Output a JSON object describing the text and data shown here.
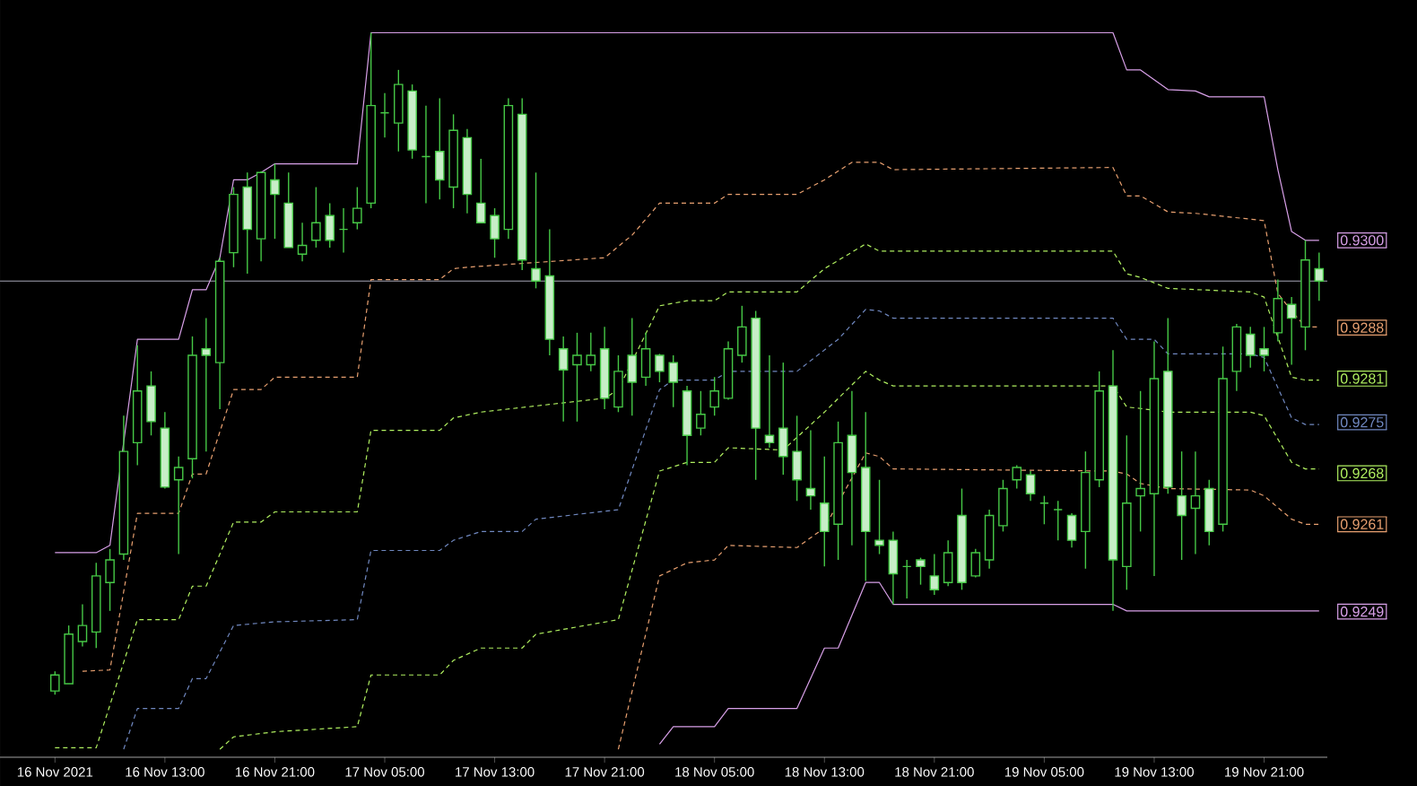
{
  "chart_data": {
    "type": "candlestick",
    "color": "#46c846",
    "x": [
      "2021-11-16T05:00",
      "2021-11-16T06:00",
      "2021-11-16T07:00",
      "2021-11-16T08:00",
      "2021-11-16T09:00",
      "2021-11-16T10:00",
      "2021-11-16T11:00",
      "2021-11-16T12:00",
      "2021-11-16T13:00",
      "2021-11-16T14:00",
      "2021-11-16T15:00",
      "2021-11-16T16:00",
      "2021-11-16T17:00",
      "2021-11-16T18:00",
      "2021-11-16T19:00",
      "2021-11-16T20:00",
      "2021-11-16T21:00",
      "2021-11-16T22:00",
      "2021-11-16T23:00",
      "2021-11-17T00:00",
      "2021-11-17T01:00",
      "2021-11-17T02:00",
      "2021-11-17T03:00",
      "2021-11-17T04:00",
      "2021-11-17T05:00",
      "2021-11-17T06:00",
      "2021-11-17T07:00",
      "2021-11-17T08:00",
      "2021-11-17T09:00",
      "2021-11-17T10:00",
      "2021-11-17T11:00",
      "2021-11-17T12:00",
      "2021-11-17T13:00",
      "2021-11-17T14:00",
      "2021-11-17T15:00",
      "2021-11-17T16:00",
      "2021-11-17T17:00",
      "2021-11-17T18:00",
      "2021-11-17T19:00",
      "2021-11-17T20:00",
      "2021-11-17T21:00",
      "2021-11-17T22:00",
      "2021-11-17T23:00",
      "2021-11-18T00:00",
      "2021-11-18T01:00",
      "2021-11-18T02:00",
      "2021-11-18T03:00",
      "2021-11-18T04:00",
      "2021-11-18T05:00",
      "2021-11-18T06:00",
      "2021-11-18T07:00",
      "2021-11-18T08:00",
      "2021-11-18T09:00",
      "2021-11-18T10:00",
      "2021-11-18T11:00",
      "2021-11-18T12:00",
      "2021-11-18T13:00",
      "2021-11-18T14:00",
      "2021-11-18T15:00",
      "2021-11-18T16:00",
      "2021-11-18T17:00",
      "2021-11-18T18:00",
      "2021-11-18T19:00",
      "2021-11-18T20:00",
      "2021-11-18T21:00",
      "2021-11-18T22:00",
      "2021-11-18T23:00",
      "2021-11-19T00:00",
      "2021-11-19T01:00",
      "2021-11-19T02:00",
      "2021-11-19T03:00",
      "2021-11-19T04:00",
      "2021-11-19T05:00",
      "2021-11-19T06:00",
      "2021-11-19T07:00",
      "2021-11-19T08:00",
      "2021-11-19T09:00",
      "2021-11-19T10:00",
      "2021-11-19T11:00",
      "2021-11-19T12:00",
      "2021-11-19T13:00",
      "2021-11-19T14:00",
      "2021-11-19T15:00",
      "2021-11-19T16:00",
      "2021-11-19T17:00",
      "2021-11-19T18:00",
      "2021-11-19T19:00",
      "2021-11-19T20:00",
      "2021-11-19T21:00",
      "2021-11-19T22:00",
      "2021-11-19T23:00",
      "2021-11-20T00:00",
      "2021-11-20T01:00"
    ],
    "ohlc": [
      [
        0.92381,
        0.92408,
        0.92376,
        0.92403
      ],
      [
        0.92391,
        0.92471,
        0.92391,
        0.92459
      ],
      [
        0.92449,
        0.925,
        0.92442,
        0.92471
      ],
      [
        0.92462,
        0.92557,
        0.9244,
        0.92539
      ],
      [
        0.9253,
        0.92576,
        0.92491,
        0.92561
      ],
      [
        0.92569,
        0.92759,
        0.92561,
        0.9271
      ],
      [
        0.92722,
        0.92856,
        0.92691,
        0.92793
      ],
      [
        0.928,
        0.9282,
        0.92732,
        0.92751
      ],
      [
        0.92742,
        0.92764,
        0.92659,
        0.92661
      ],
      [
        0.92671,
        0.92703,
        0.92569,
        0.92688
      ],
      [
        0.927,
        0.92868,
        0.92673,
        0.92842
      ],
      [
        0.92851,
        0.92893,
        0.9271,
        0.92842
      ],
      [
        0.92832,
        0.92976,
        0.92768,
        0.92971
      ],
      [
        0.92983,
        0.93073,
        0.92963,
        0.93063
      ],
      [
        0.93073,
        0.93093,
        0.92954,
        0.93015
      ],
      [
        0.93002,
        0.93095,
        0.92971,
        0.93093
      ],
      [
        0.93083,
        0.93105,
        0.93002,
        0.93063
      ],
      [
        0.93051,
        0.93093,
        0.9299,
        0.9299
      ],
      [
        0.92981,
        0.93024,
        0.92971,
        0.92993
      ],
      [
        0.93,
        0.93073,
        0.9299,
        0.93024
      ],
      [
        0.93034,
        0.93051,
        0.9299,
        0.93
      ],
      [
        0.93015,
        0.93044,
        0.92983,
        0.93015
      ],
      [
        0.93024,
        0.93073,
        0.93015,
        0.93044
      ],
      [
        0.93051,
        0.93285,
        0.93044,
        0.93185
      ],
      [
        0.93175,
        0.93202,
        0.93141,
        0.93175
      ],
      [
        0.93161,
        0.93234,
        0.93122,
        0.93214
      ],
      [
        0.93205,
        0.93214,
        0.93112,
        0.93124
      ],
      [
        0.93115,
        0.93185,
        0.93051,
        0.93115
      ],
      [
        0.93122,
        0.93195,
        0.93056,
        0.93083
      ],
      [
        0.93073,
        0.93173,
        0.93044,
        0.93151
      ],
      [
        0.93141,
        0.93153,
        0.93037,
        0.93063
      ],
      [
        0.93051,
        0.93112,
        0.93024,
        0.93024
      ],
      [
        0.93034,
        0.93044,
        0.92976,
        0.93002
      ],
      [
        0.93015,
        0.93195,
        0.93002,
        0.93185
      ],
      [
        0.93173,
        0.93195,
        0.92959,
        0.92973
      ],
      [
        0.92961,
        0.93093,
        0.92934,
        0.92944
      ],
      [
        0.92951,
        0.93015,
        0.92842,
        0.92864
      ],
      [
        0.92851,
        0.92868,
        0.92751,
        0.92822
      ],
      [
        0.92829,
        0.92873,
        0.92751,
        0.92842
      ],
      [
        0.92829,
        0.92873,
        0.9282,
        0.92842
      ],
      [
        0.92851,
        0.92881,
        0.92768,
        0.92783
      ],
      [
        0.92771,
        0.92842,
        0.92764,
        0.9282
      ],
      [
        0.92842,
        0.92893,
        0.92759,
        0.92805
      ],
      [
        0.92812,
        0.92873,
        0.928,
        0.92851
      ],
      [
        0.92842,
        0.92844,
        0.92805,
        0.9282
      ],
      [
        0.92832,
        0.92842,
        0.92771,
        0.92805
      ],
      [
        0.92793,
        0.928,
        0.92691,
        0.92732
      ],
      [
        0.92742,
        0.92793,
        0.92732,
        0.92761
      ],
      [
        0.92771,
        0.92812,
        0.92759,
        0.92793
      ],
      [
        0.92783,
        0.92861,
        0.92781,
        0.92851
      ],
      [
        0.92842,
        0.9291,
        0.92832,
        0.92881
      ],
      [
        0.92893,
        0.92903,
        0.92671,
        0.92742
      ],
      [
        0.92732,
        0.92842,
        0.92715,
        0.92722
      ],
      [
        0.92742,
        0.92832,
        0.92678,
        0.92703
      ],
      [
        0.9271,
        0.92759,
        0.92642,
        0.92671
      ],
      [
        0.92659,
        0.92739,
        0.9263,
        0.92649
      ],
      [
        0.92639,
        0.92703,
        0.92552,
        0.926
      ],
      [
        0.9261,
        0.92751,
        0.92561,
        0.92722
      ],
      [
        0.92732,
        0.92793,
        0.92581,
        0.92681
      ],
      [
        0.92688,
        0.92764,
        0.92532,
        0.926
      ],
      [
        0.92588,
        0.92671,
        0.92569,
        0.92581
      ],
      [
        0.92588,
        0.926,
        0.925,
        0.92542
      ],
      [
        0.92552,
        0.92561,
        0.92508,
        0.92552
      ],
      [
        0.92561,
        0.92564,
        0.92527,
        0.92552
      ],
      [
        0.92539,
        0.92569,
        0.92513,
        0.9252
      ],
      [
        0.9253,
        0.92588,
        0.92525,
        0.92571
      ],
      [
        0.92622,
        0.92659,
        0.9252,
        0.9253
      ],
      [
        0.92539,
        0.92576,
        0.92537,
        0.92571
      ],
      [
        0.92561,
        0.9263,
        0.92549,
        0.92622
      ],
      [
        0.92608,
        0.92671,
        0.926,
        0.92659
      ],
      [
        0.92671,
        0.92691,
        0.92659,
        0.92688
      ],
      [
        0.92678,
        0.92683,
        0.92642,
        0.92652
      ],
      [
        0.92639,
        0.92649,
        0.9261,
        0.92639
      ],
      [
        0.9263,
        0.92642,
        0.92588,
        0.9263
      ],
      [
        0.92622,
        0.92625,
        0.92578,
        0.92588
      ],
      [
        0.926,
        0.9271,
        0.92549,
        0.92681
      ],
      [
        0.92671,
        0.9282,
        0.92661,
        0.92793
      ],
      [
        0.928,
        0.92849,
        0.92491,
        0.92561
      ],
      [
        0.92552,
        0.92732,
        0.9252,
        0.92639
      ],
      [
        0.92649,
        0.92793,
        0.926,
        0.92659
      ],
      [
        0.92652,
        0.92861,
        0.92539,
        0.9281
      ],
      [
        0.9282,
        0.92893,
        0.92652,
        0.92661
      ],
      [
        0.92649,
        0.9271,
        0.92561,
        0.92622
      ],
      [
        0.92632,
        0.9271,
        0.92569,
        0.92649
      ],
      [
        0.92659,
        0.92671,
        0.92581,
        0.926
      ],
      [
        0.9261,
        0.92854,
        0.926,
        0.9281
      ],
      [
        0.9282,
        0.92885,
        0.92793,
        0.92881
      ],
      [
        0.92871,
        0.92881,
        0.92825,
        0.92842
      ],
      [
        0.92851,
        0.92881,
        0.9282,
        0.92842
      ],
      [
        0.92873,
        0.92946,
        0.92861,
        0.9292
      ],
      [
        0.92912,
        0.92922,
        0.92829,
        0.92893
      ],
      [
        0.92881,
        0.93,
        0.92849,
        0.92973
      ],
      [
        0.92961,
        0.92983,
        0.92917,
        0.92944
      ]
    ],
    "series": [
      {
        "type": "line",
        "color": "#d8a0e8",
        "line_style": "solid",
        "x": [
          "2021-11-16T05:00",
          "2021-11-16T08:00",
          "2021-11-16T09:00",
          "2021-11-16T11:00",
          "2021-11-16T14:00",
          "2021-11-16T15:00",
          "2021-11-16T16:00",
          "2021-11-16T17:00",
          "2021-11-16T18:00",
          "2021-11-16T19:00",
          "2021-11-16T20:00",
          "2021-11-16T21:00",
          "2021-11-17T03:00",
          "2021-11-17T04:00",
          "2021-11-19T10:00",
          "2021-11-19T11:00",
          "2021-11-19T12:00",
          "2021-11-19T14:00",
          "2021-11-19T16:00",
          "2021-11-19T17:00",
          "2021-11-19T21:00",
          "2021-11-19T22:00",
          "2021-11-19T23:00",
          "2021-11-20T00:00",
          "2021-11-20T01:00"
        ],
        "values": [
          0.92571,
          0.92571,
          0.92581,
          0.92864,
          0.92864,
          0.92932,
          0.92932,
          0.92976,
          0.93083,
          0.93083,
          0.93093,
          0.93105,
          0.93105,
          0.93285,
          0.93285,
          0.93234,
          0.93234,
          0.93207,
          0.93205,
          0.93197,
          0.93197,
          0.93097,
          0.93012,
          0.93,
          0.93
        ]
      },
      {
        "type": "line",
        "color": "#e8a070",
        "line_style": "dashed",
        "x": [
          "2021-11-16T07:00",
          "2021-11-16T09:00",
          "2021-11-16T11:00",
          "2021-11-16T14:00",
          "2021-11-16T15:00",
          "2021-11-16T16:00",
          "2021-11-16T18:00",
          "2021-11-16T20:00",
          "2021-11-16T21:00",
          "2021-11-17T03:00",
          "2021-11-17T04:00",
          "2021-11-17T09:00",
          "2021-11-17T10:00",
          "2021-11-17T11:00",
          "2021-11-17T21:00",
          "2021-11-17T23:00",
          "2021-11-18T01:00",
          "2021-11-18T05:00",
          "2021-11-18T06:00",
          "2021-11-18T11:00",
          "2021-11-18T13:00",
          "2021-11-18T15:00",
          "2021-11-18T17:00",
          "2021-11-18T18:00",
          "2021-11-19T10:00",
          "2021-11-19T11:00",
          "2021-11-19T12:00",
          "2021-11-19T14:00",
          "2021-11-19T16:00",
          "2021-11-19T21:00",
          "2021-11-19T22:00",
          "2021-11-19T23:00",
          "2021-11-20T00:00",
          "2021-11-20T01:00"
        ],
        "values": [
          0.92408,
          0.9241,
          0.92625,
          0.92625,
          0.92679,
          0.92679,
          0.92795,
          0.92795,
          0.92812,
          0.92812,
          0.92946,
          0.92946,
          0.92961,
          0.92963,
          0.92976,
          0.93007,
          0.93051,
          0.93051,
          0.93063,
          0.93063,
          0.93083,
          0.93107,
          0.93107,
          0.93097,
          0.931,
          0.93061,
          0.93061,
          0.93039,
          0.93037,
          0.93027,
          0.92927,
          0.92903,
          0.92881,
          0.92881
        ]
      },
      {
        "type": "line",
        "color": "#b0f060",
        "line_style": "dashed",
        "x": [
          "2021-11-16T05:00",
          "2021-11-16T08:00",
          "2021-11-16T11:00",
          "2021-11-16T14:00",
          "2021-11-16T15:00",
          "2021-11-16T16:00",
          "2021-11-16T18:00",
          "2021-11-16T20:00",
          "2021-11-16T21:00",
          "2021-11-17T03:00",
          "2021-11-17T04:00",
          "2021-11-17T09:00",
          "2021-11-17T10:00",
          "2021-11-17T12:00",
          "2021-11-17T21:00",
          "2021-11-17T22:00",
          "2021-11-18T01:00",
          "2021-11-18T03:00",
          "2021-11-18T05:00",
          "2021-11-18T06:00",
          "2021-11-18T11:00",
          "2021-11-18T13:00",
          "2021-11-18T16:00",
          "2021-11-18T17:00",
          "2021-11-19T10:00",
          "2021-11-19T11:00",
          "2021-11-19T12:00",
          "2021-11-19T14:00",
          "2021-11-19T20:00",
          "2021-11-19T21:00",
          "2021-11-19T23:00",
          "2021-11-20T00:00",
          "2021-11-20T01:00"
        ],
        "values": [
          0.92303,
          0.92303,
          0.92479,
          0.92479,
          0.92525,
          0.92525,
          0.92613,
          0.92613,
          0.92627,
          0.92627,
          0.92739,
          0.92739,
          0.92756,
          0.92764,
          0.92783,
          0.92795,
          0.9291,
          0.92917,
          0.92917,
          0.92929,
          0.92929,
          0.92961,
          0.92995,
          0.92985,
          0.92985,
          0.92954,
          0.92949,
          0.92934,
          0.92929,
          0.92922,
          0.92812,
          0.92808,
          0.92808
        ]
      },
      {
        "type": "line",
        "color": "#7088c0",
        "line_style": "dashed",
        "x": [
          "2021-11-16T10:00",
          "2021-11-16T11:00",
          "2021-11-16T14:00",
          "2021-11-16T15:00",
          "2021-11-16T16:00",
          "2021-11-16T18:00",
          "2021-11-16T21:00",
          "2021-11-17T03:00",
          "2021-11-17T04:00",
          "2021-11-17T09:00",
          "2021-11-17T10:00",
          "2021-11-17T12:00",
          "2021-11-17T15:00",
          "2021-11-17T16:00",
          "2021-11-17T22:00",
          "2021-11-18T01:00",
          "2021-11-18T02:00",
          "2021-11-18T05:00",
          "2021-11-18T06:00",
          "2021-11-18T11:00",
          "2021-11-18T14:00",
          "2021-11-18T16:00",
          "2021-11-18T17:00",
          "2021-11-18T18:00",
          "2021-11-19T10:00",
          "2021-11-19T11:00",
          "2021-11-19T13:00",
          "2021-11-19T14:00",
          "2021-11-19T20:00",
          "2021-11-19T21:00",
          "2021-11-19T23:00",
          "2021-11-20T00:00",
          "2021-11-20T01:00"
        ],
        "values": [
          0.92301,
          0.92357,
          0.92357,
          0.92398,
          0.92398,
          0.92471,
          0.92476,
          0.92479,
          0.92574,
          0.92574,
          0.92588,
          0.926,
          0.926,
          0.92617,
          0.9263,
          0.92795,
          0.92808,
          0.92808,
          0.9282,
          0.9282,
          0.92864,
          0.92905,
          0.92903,
          0.92893,
          0.92893,
          0.92864,
          0.92864,
          0.92844,
          0.92844,
          0.92839,
          0.92756,
          0.92747,
          0.92747
        ]
      },
      {
        "type": "line",
        "color": "#b0f060",
        "line_style": "dashed",
        "x": [
          "2021-11-16T17:00",
          "2021-11-16T18:00",
          "2021-11-16T21:00",
          "2021-11-17T03:00",
          "2021-11-17T04:00",
          "2021-11-17T09:00",
          "2021-11-17T10:00",
          "2021-11-17T12:00",
          "2021-11-17T15:00",
          "2021-11-17T16:00",
          "2021-11-17T22:00",
          "2021-11-18T01:00",
          "2021-11-18T03:00",
          "2021-11-18T05:00",
          "2021-11-18T06:00",
          "2021-11-18T10:00",
          "2021-11-18T13:00",
          "2021-11-18T16:00",
          "2021-11-18T17:00",
          "2021-11-18T18:00",
          "2021-11-19T10:00",
          "2021-11-19T11:00",
          "2021-11-19T12:00",
          "2021-11-19T14:00",
          "2021-11-19T20:00",
          "2021-11-19T21:00",
          "2021-11-19T23:00",
          "2021-11-20T00:00",
          "2021-11-20T01:00"
        ],
        "values": [
          0.92301,
          0.92318,
          0.92325,
          0.92332,
          0.92403,
          0.92403,
          0.92423,
          0.9244,
          0.9244,
          0.92459,
          0.92479,
          0.92683,
          0.92695,
          0.92695,
          0.92715,
          0.92712,
          0.92764,
          0.9282,
          0.92808,
          0.928,
          0.928,
          0.92771,
          0.92769,
          0.92764,
          0.92764,
          0.92759,
          0.92695,
          0.92686,
          0.92686
        ]
      },
      {
        "type": "line",
        "color": "#e8a070",
        "line_style": "dashed",
        "x": [
          "2021-11-17T22:00",
          "2021-11-18T01:00",
          "2021-11-18T03:00",
          "2021-11-18T05:00",
          "2021-11-18T06:00",
          "2021-11-18T11:00",
          "2021-11-18T13:00",
          "2021-11-18T16:00",
          "2021-11-18T17:00",
          "2021-11-18T18:00",
          "2021-11-19T10:00",
          "2021-11-19T11:00",
          "2021-11-19T12:00",
          "2021-11-19T14:00",
          "2021-11-19T20:00",
          "2021-11-19T21:00",
          "2021-11-19T23:00",
          "2021-11-20T00:00",
          "2021-11-20T01:00"
        ],
        "values": [
          0.92301,
          0.92539,
          0.92557,
          0.92561,
          0.92581,
          0.92578,
          0.92605,
          0.92708,
          0.92703,
          0.92686,
          0.92683,
          0.92679,
          0.92666,
          0.92659,
          0.92657,
          0.92649,
          0.92617,
          0.9261,
          0.9261
        ]
      },
      {
        "type": "line",
        "color": "#d8a0e8",
        "line_style": "solid",
        "x": [
          "2021-11-18T01:00",
          "2021-11-18T02:00",
          "2021-11-18T05:00",
          "2021-11-18T06:00",
          "2021-11-18T11:00",
          "2021-11-18T13:00",
          "2021-11-18T14:00",
          "2021-11-18T16:00",
          "2021-11-18T17:00",
          "2021-11-18T18:00",
          "2021-11-19T10:00",
          "2021-11-19T11:00",
          "2021-11-20T01:00"
        ],
        "values": [
          0.92308,
          0.92332,
          0.92332,
          0.92357,
          0.92357,
          0.9244,
          0.9244,
          0.9253,
          0.9253,
          0.925,
          0.925,
          0.92491,
          0.92491
        ]
      }
    ],
    "ref_lines": [
      {
        "axis": "y",
        "value": 0.92944,
        "color": "#a8a8b8"
      }
    ],
    "xlim": [
      "2021-11-16T01:00",
      "2021-11-20T01:36"
    ],
    "ylim": [
      0.9229,
      0.9333
    ],
    "xticks": [
      {
        "value": "2021-11-16T05:00",
        "label": "16 Nov 2021"
      },
      {
        "value": "2021-11-16T13:00",
        "label": "16 Nov 13:00"
      },
      {
        "value": "2021-11-16T21:00",
        "label": "16 Nov 21:00"
      },
      {
        "value": "2021-11-17T05:00",
        "label": "17 Nov 05:00"
      },
      {
        "value": "2021-11-17T13:00",
        "label": "17 Nov 13:00"
      },
      {
        "value": "2021-11-17T21:00",
        "label": "17 Nov 21:00"
      },
      {
        "value": "2021-11-18T05:00",
        "label": "18 Nov 05:00"
      },
      {
        "value": "2021-11-18T13:00",
        "label": "18 Nov 13:00"
      },
      {
        "value": "2021-11-18T21:00",
        "label": "18 Nov 21:00"
      },
      {
        "value": "2021-11-19T05:00",
        "label": "19 Nov 05:00"
      },
      {
        "value": "2021-11-19T13:00",
        "label": "19 Nov 13:00"
      },
      {
        "value": "2021-11-19T21:00",
        "label": "19 Nov 21:00"
      }
    ],
    "yticks": [
      {
        "value": 0.93,
        "label": "0.9300"
      },
      {
        "value": 0.9288,
        "label": "0.9288"
      },
      {
        "value": 0.9281,
        "label": "0.9281"
      },
      {
        "value": 0.9275,
        "label": "0.9275"
      },
      {
        "value": 0.9268,
        "label": "0.9268"
      },
      {
        "value": 0.9261,
        "label": "0.9261"
      },
      {
        "value": 0.9249,
        "label": "0.9249"
      }
    ]
  }
}
